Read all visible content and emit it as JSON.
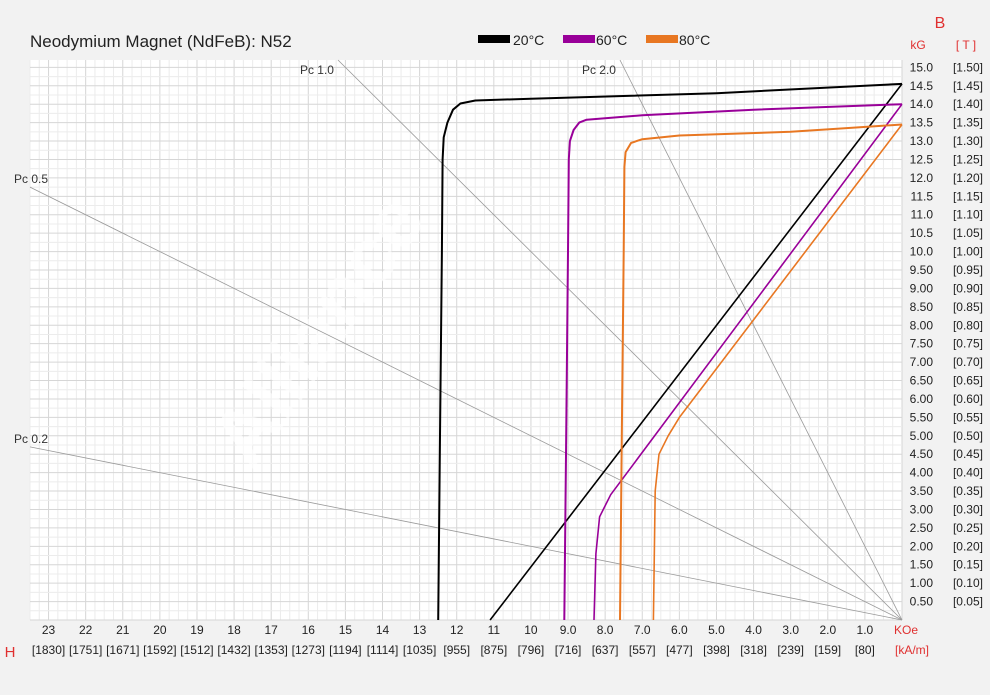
{
  "chart_data": {
    "type": "line",
    "title": "Neodymium Magnet (NdFeB):  N52",
    "watermark": "Alliance",
    "x_axis": {
      "name": "H",
      "unit_primary": "KOe",
      "unit_secondary": "[kA/m]",
      "range": [
        23.5,
        0
      ],
      "tick_labels": [
        "23",
        "22",
        "21",
        "20",
        "19",
        "18",
        "17",
        "16",
        "15",
        "14",
        "13",
        "12",
        "11",
        "10",
        "9.0",
        "8.0",
        "7.0",
        "6.0",
        "5.0",
        "4.0",
        "3.0",
        "2.0",
        "1.0"
      ],
      "tick_values": [
        23,
        22,
        21,
        20,
        19,
        18,
        17,
        16,
        15,
        14,
        13,
        12,
        11,
        10,
        9,
        8,
        7,
        6,
        5,
        4,
        3,
        2,
        1
      ],
      "secondary_tick_labels": [
        "[1830]",
        "[1751]",
        "[1671]",
        "[1592]",
        "[1512]",
        "[1432]",
        "[1353]",
        "[1273]",
        "[1194]",
        "[1114]",
        "[1035]",
        "[955]",
        "[875]",
        "[796]",
        "[716]",
        "[637]",
        "[557]",
        "[477]",
        "[398]",
        "[318]",
        "[239]",
        "[159]",
        "[80]"
      ]
    },
    "y_axis": {
      "name": "B",
      "unit_primary": "kG",
      "unit_secondary": "[ T ]",
      "range": [
        0,
        15.2
      ],
      "tick_labels": [
        "15.0",
        "14.5",
        "14.0",
        "13.5",
        "13.0",
        "12.5",
        "12.0",
        "11.5",
        "11.0",
        "10.5",
        "10.0",
        "9.50",
        "9.00",
        "8.50",
        "8.00",
        "7.50",
        "7.00",
        "6.50",
        "6.00",
        "5.50",
        "5.00",
        "4.50",
        "4.00",
        "3.50",
        "3.00",
        "2.50",
        "2.00",
        "1.50",
        "1.00",
        "0.50"
      ],
      "tick_values": [
        15,
        14.5,
        14,
        13.5,
        13,
        12.5,
        12,
        11.5,
        11,
        10.5,
        10,
        9.5,
        9,
        8.5,
        8,
        7.5,
        7,
        6.5,
        6,
        5.5,
        5,
        4.5,
        4,
        3.5,
        3,
        2.5,
        2,
        1.5,
        1,
        0.5
      ],
      "secondary_tick_labels": [
        "[1.50]",
        "[1.45]",
        "[1.40]",
        "[1.35]",
        "[1.30]",
        "[1.25]",
        "[1.20]",
        "[1.15]",
        "[1.10]",
        "[1.05]",
        "[1.00]",
        "[0.95]",
        "[0.90]",
        "[0.85]",
        "[0.80]",
        "[0.75]",
        "[0.70]",
        "[0.65]",
        "[0.60]",
        "[0.55]",
        "[0.50]",
        "[0.45]",
        "[0.40]",
        "[0.35]",
        "[0.30]",
        "[0.25]",
        "[0.20]",
        "[0.15]",
        "[0.10]",
        "[0.05]"
      ]
    },
    "grid": true,
    "legend_position": "top-center",
    "legend": [
      {
        "label": "20°C",
        "color": "#000000"
      },
      {
        "label": "60°C",
        "color": "#990099"
      },
      {
        "label": "80°C",
        "color": "#e87722"
      }
    ],
    "load_lines": [
      {
        "label": "Pc 0.2",
        "slope": 0.2
      },
      {
        "label": "Pc 0.5",
        "slope": 0.5
      },
      {
        "label": "Pc 1.0",
        "slope": 1.0
      },
      {
        "label": "Pc 2.0",
        "slope": 2.0
      }
    ],
    "load_line_color": "#999999",
    "series": [
      {
        "name": "20°C",
        "color": "#000000",
        "normal_curve": [
          [
            12.5,
            0
          ],
          [
            12.45,
            5
          ],
          [
            12.4,
            10
          ],
          [
            12.38,
            12.5
          ],
          [
            12.35,
            13.1
          ],
          [
            12.25,
            13.5
          ],
          [
            12.1,
            13.85
          ],
          [
            11.9,
            14.02
          ],
          [
            11.5,
            14.1
          ],
          [
            10,
            14.15
          ],
          [
            5,
            14.3
          ],
          [
            0,
            14.55
          ]
        ],
        "intrinsic_line": [
          [
            11.1,
            0
          ],
          [
            0,
            14.55
          ]
        ]
      },
      {
        "name": "60°C",
        "color": "#990099",
        "normal_curve": [
          [
            9.1,
            0
          ],
          [
            9.05,
            5
          ],
          [
            9.0,
            10
          ],
          [
            8.98,
            12.5
          ],
          [
            8.95,
            13.0
          ],
          [
            8.85,
            13.3
          ],
          [
            8.7,
            13.5
          ],
          [
            8.5,
            13.58
          ],
          [
            7,
            13.7
          ],
          [
            4,
            13.85
          ],
          [
            0,
            14.0
          ]
        ],
        "intrinsic_line": [
          [
            8.3,
            0
          ],
          [
            8.25,
            1.8
          ],
          [
            8.15,
            2.8
          ],
          [
            7.85,
            3.4
          ],
          [
            0,
            14.0
          ]
        ]
      },
      {
        "name": "80°C",
        "color": "#e87722",
        "normal_curve": [
          [
            7.6,
            0
          ],
          [
            7.55,
            5
          ],
          [
            7.5,
            10
          ],
          [
            7.48,
            12.3
          ],
          [
            7.45,
            12.7
          ],
          [
            7.3,
            12.95
          ],
          [
            7.0,
            13.05
          ],
          [
            6,
            13.15
          ],
          [
            3,
            13.25
          ],
          [
            0,
            13.45
          ]
        ],
        "intrinsic_line": [
          [
            6.7,
            0
          ],
          [
            6.65,
            3.5
          ],
          [
            6.55,
            4.5
          ],
          [
            6.3,
            5.0
          ],
          [
            6.0,
            5.5
          ],
          [
            0,
            13.45
          ]
        ]
      }
    ]
  }
}
